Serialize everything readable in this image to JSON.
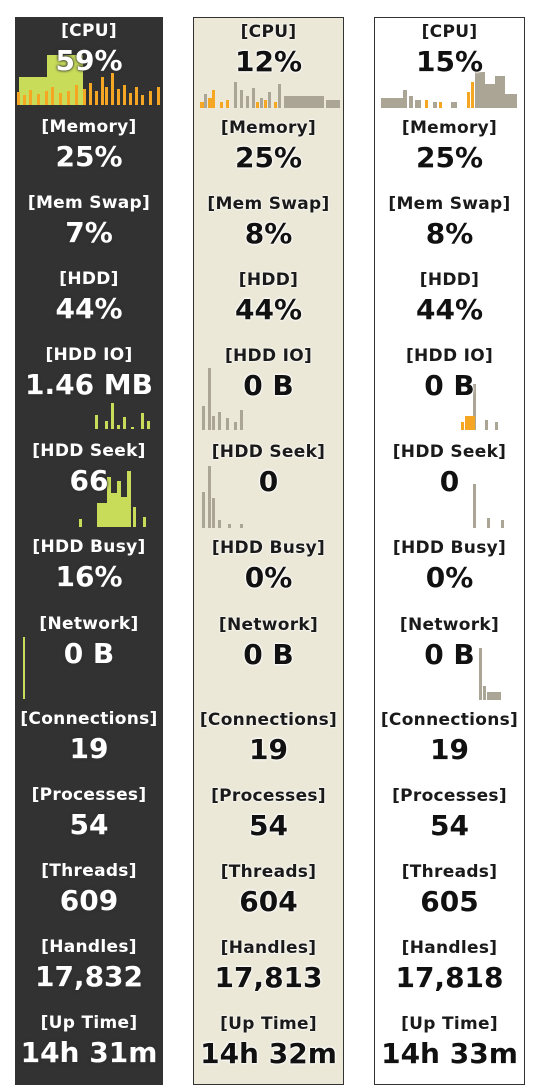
{
  "colors": {
    "dark_bg": "#323232",
    "beige_bg": "#ebe8d8",
    "light_bg": "#ffffff",
    "accent_orange": "#f5a623",
    "accent_lime": "#c8dc5a",
    "graph_grey": "#aaa595"
  },
  "panels": [
    {
      "theme": "dark",
      "metrics": [
        {
          "label": "[CPU]",
          "value": "59%"
        },
        {
          "label": "[Memory]",
          "value": "25%"
        },
        {
          "label": "[Mem Swap]",
          "value": "7%"
        },
        {
          "label": "[HDD]",
          "value": "44%"
        },
        {
          "label": "[HDD IO]",
          "value": "1.46 MB"
        },
        {
          "label": "[HDD Seek]",
          "value": "66"
        },
        {
          "label": "[HDD Busy]",
          "value": "16%"
        },
        {
          "label": "[Network]",
          "value": "0 B"
        },
        {
          "label": "[Connections]",
          "value": "19"
        },
        {
          "label": "[Processes]",
          "value": "54"
        },
        {
          "label": "[Threads]",
          "value": "609"
        },
        {
          "label": "[Handles]",
          "value": "17,832"
        },
        {
          "label": "[Up Time]",
          "value": "14h 31m"
        }
      ]
    },
    {
      "theme": "beige",
      "metrics": [
        {
          "label": "[CPU]",
          "value": "12%"
        },
        {
          "label": "[Memory]",
          "value": "25%"
        },
        {
          "label": "[Mem Swap]",
          "value": "8%"
        },
        {
          "label": "[HDD]",
          "value": "44%"
        },
        {
          "label": "[HDD IO]",
          "value": "0 B"
        },
        {
          "label": "[HDD Seek]",
          "value": "0"
        },
        {
          "label": "[HDD Busy]",
          "value": "0%"
        },
        {
          "label": "[Network]",
          "value": "0 B"
        },
        {
          "label": "[Connections]",
          "value": "19"
        },
        {
          "label": "[Processes]",
          "value": "54"
        },
        {
          "label": "[Threads]",
          "value": "604"
        },
        {
          "label": "[Handles]",
          "value": "17,813"
        },
        {
          "label": "[Up Time]",
          "value": "14h 32m"
        }
      ]
    },
    {
      "theme": "light",
      "metrics": [
        {
          "label": "[CPU]",
          "value": "15%"
        },
        {
          "label": "[Memory]",
          "value": "25%"
        },
        {
          "label": "[Mem Swap]",
          "value": "8%"
        },
        {
          "label": "[HDD]",
          "value": "44%"
        },
        {
          "label": "[HDD IO]",
          "value": "0 B"
        },
        {
          "label": "[HDD Seek]",
          "value": "0"
        },
        {
          "label": "[HDD Busy]",
          "value": "0%"
        },
        {
          "label": "[Network]",
          "value": "0 B"
        },
        {
          "label": "[Connections]",
          "value": "19"
        },
        {
          "label": "[Processes]",
          "value": "54"
        },
        {
          "label": "[Threads]",
          "value": "605"
        },
        {
          "label": "[Handles]",
          "value": "17,818"
        },
        {
          "label": "[Up Time]",
          "value": "14h 33m"
        }
      ]
    }
  ]
}
